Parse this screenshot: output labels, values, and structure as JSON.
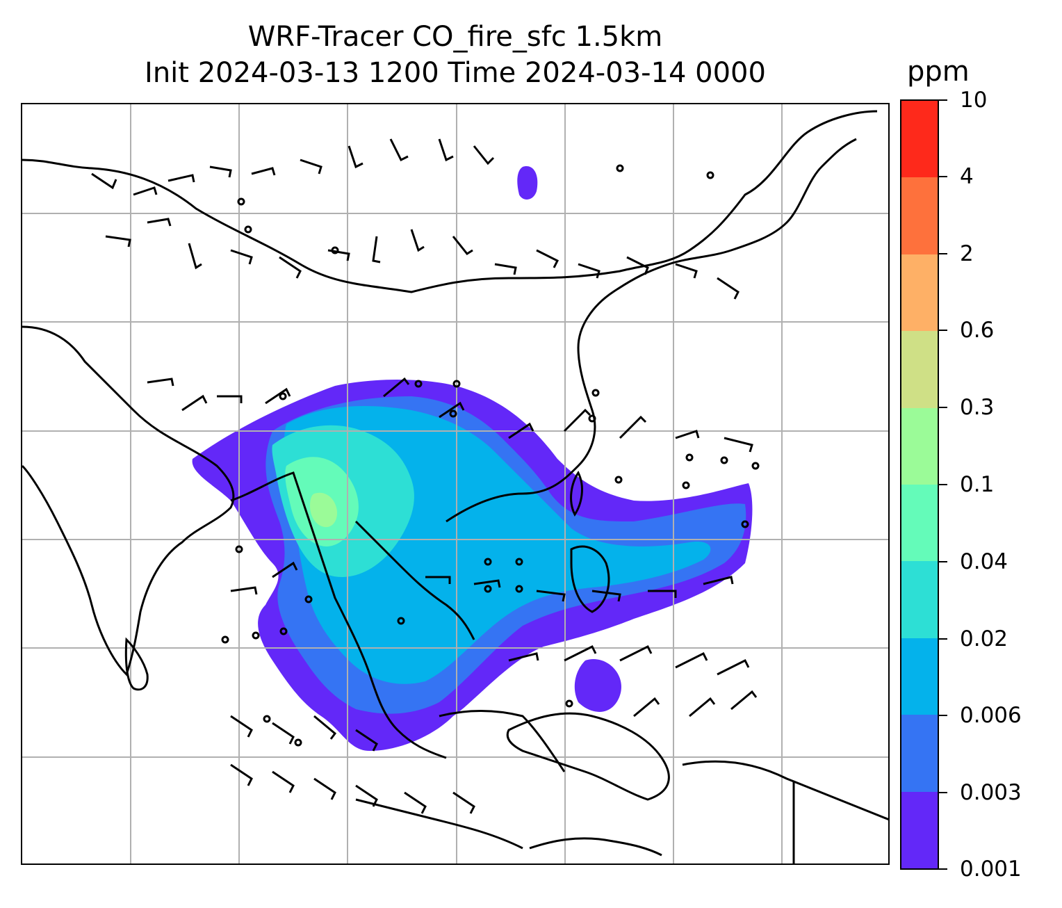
{
  "title": {
    "line1": "WRF-Tracer CO_fire_sfc 1.5km",
    "line2": "Init 2024-03-13 1200 Time 2024-03-14 0000"
  },
  "colorbar": {
    "unit": "ppm",
    "levels": [
      {
        "label": "0.001",
        "color": "#6328f8"
      },
      {
        "label": "0.003",
        "color": "#3574f3"
      },
      {
        "label": "0.006",
        "color": "#04b2eb"
      },
      {
        "label": "0.02",
        "color": "#2ddfd5"
      },
      {
        "label": "0.04",
        "color": "#64fbb9"
      },
      {
        "label": "0.1",
        "color": "#9bfb98"
      },
      {
        "label": "0.3",
        "color": "#cfe086"
      },
      {
        "label": "0.6",
        "color": "#feb066"
      },
      {
        "label": "2",
        "color": "#fe713c"
      },
      {
        "label": "4",
        "color": "#fe291b"
      },
      {
        "label": "10",
        "color": ""
      }
    ]
  },
  "map": {
    "gridline_color": "#b0b0b0",
    "coastline_color": "#000000",
    "grid": true
  }
}
